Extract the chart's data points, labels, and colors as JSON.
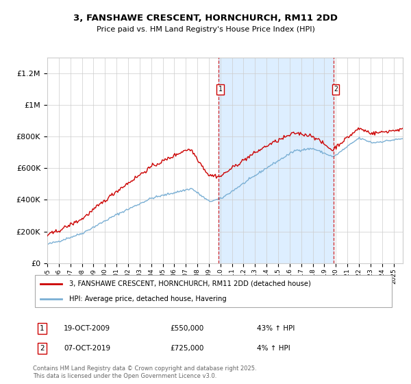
{
  "title": "3, FANSHAWE CRESCENT, HORNCHURCH, RM11 2DD",
  "subtitle": "Price paid vs. HM Land Registry's House Price Index (HPI)",
  "legend_line1": "3, FANSHAWE CRESCENT, HORNCHURCH, RM11 2DD (detached house)",
  "legend_line2": "HPI: Average price, detached house, Havering",
  "sale1_date": "19-OCT-2009",
  "sale1_price": 550000,
  "sale1_label": "43% ↑ HPI",
  "sale2_date": "07-OCT-2019",
  "sale2_price": 725000,
  "sale2_label": "4% ↑ HPI",
  "footer": "Contains HM Land Registry data © Crown copyright and database right 2025.\nThis data is licensed under the Open Government Licence v3.0.",
  "red_color": "#cc0000",
  "blue_color": "#7aafd4",
  "shade_color": "#ddeeff",
  "ylim": [
    0,
    1300000
  ],
  "xlim_start": 1995.0,
  "xlim_end": 2025.8
}
